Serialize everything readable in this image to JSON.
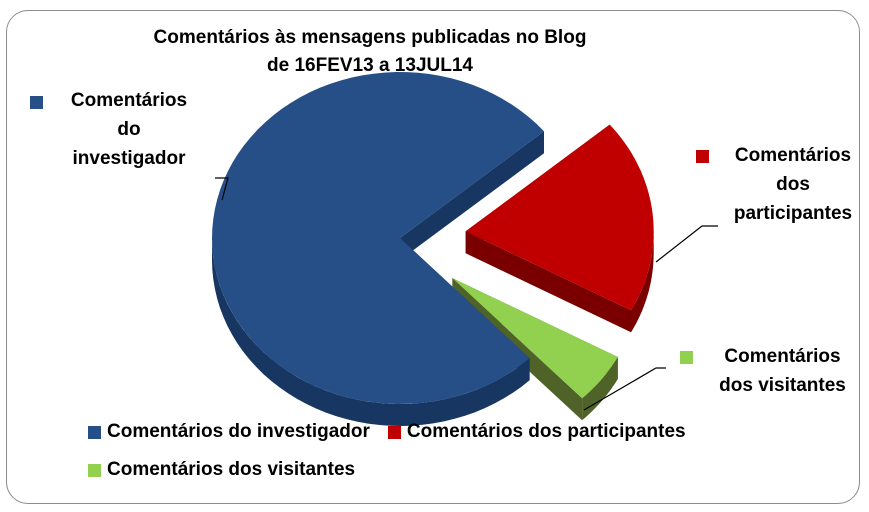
{
  "chart_data": {
    "type": "pie3d",
    "title": [
      "Comentários às mensagens publicadas no Blog",
      "de 16FEV13 a 13JUL14"
    ],
    "categories": [
      "Comentários do investigador",
      "Comentários dos participantes",
      "Comentários dos visitantes"
    ],
    "values": [
      76,
      19,
      5
    ],
    "colors": [
      "#254f86",
      "#c00000",
      "#92d050"
    ],
    "side_colors": [
      "#173661",
      "#7a0000",
      "#4f6228"
    ],
    "exploded": [
      false,
      true,
      true
    ],
    "legend": "bottom"
  }
}
